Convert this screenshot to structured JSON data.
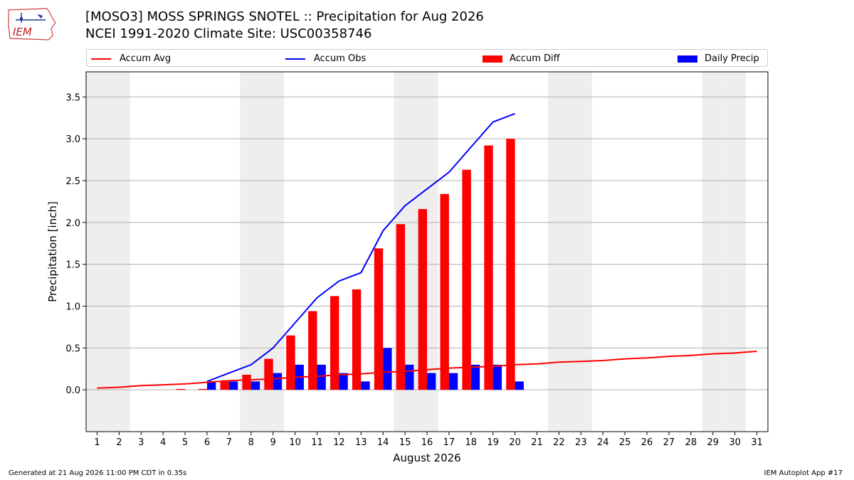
{
  "header": {
    "title_line1": "[MOSO3] MOSS SPRINGS SNOTEL :: Precipitation for Aug 2026",
    "title_line2": "NCEI 1991-2020 Climate Site: USC00358746",
    "logo_text": "IEM"
  },
  "footer": {
    "left": "Generated at 21 Aug 2026 11:00 PM CDT in 0.35s",
    "right": "IEM Autoplot App #17"
  },
  "colors": {
    "accum_avg": "#ff0000",
    "accum_obs": "#0000ff",
    "accum_diff": "#ff0000",
    "daily_precip": "#0000ff",
    "weekend_shade": "#eeeeee",
    "grid": "#b0b0b0"
  },
  "chart_data": {
    "type": "bar",
    "xlabel": "August 2026",
    "ylabel": "Precipitation [inch]",
    "xlim": [
      0.5,
      31.5
    ],
    "ylim": [
      -0.5,
      3.8
    ],
    "yticks": [
      0.0,
      0.5,
      1.0,
      1.5,
      2.0,
      2.5,
      3.0,
      3.5
    ],
    "ytick_labels": [
      "0.0",
      "0.5",
      "1.0",
      "1.5",
      "2.0",
      "2.5",
      "3.0",
      "3.5"
    ],
    "x_days": [
      1,
      2,
      3,
      4,
      5,
      6,
      7,
      8,
      9,
      10,
      11,
      12,
      13,
      14,
      15,
      16,
      17,
      18,
      19,
      20,
      21,
      22,
      23,
      24,
      25,
      26,
      27,
      28,
      29,
      30,
      31
    ],
    "grid": "horizontal",
    "legend_position": "top",
    "weekend_days": [
      1,
      2,
      8,
      9,
      15,
      16,
      22,
      23,
      29,
      30
    ],
    "series": [
      {
        "name": "Accum Avg",
        "kind": "line",
        "x": [
          1,
          2,
          3,
          4,
          5,
          6,
          7,
          8,
          9,
          10,
          11,
          12,
          13,
          14,
          15,
          16,
          17,
          18,
          19,
          20,
          21,
          22,
          23,
          24,
          25,
          26,
          27,
          28,
          29,
          30,
          31
        ],
        "values": [
          0.02,
          0.03,
          0.05,
          0.06,
          0.07,
          0.09,
          0.11,
          0.12,
          0.13,
          0.15,
          0.16,
          0.18,
          0.19,
          0.21,
          0.22,
          0.24,
          0.26,
          0.27,
          0.28,
          0.3,
          0.31,
          0.33,
          0.34,
          0.35,
          0.37,
          0.38,
          0.4,
          0.41,
          0.43,
          0.44,
          0.46
        ]
      },
      {
        "name": "Accum Obs",
        "kind": "line",
        "x": [
          6,
          7,
          8,
          9,
          10,
          11,
          12,
          13,
          14,
          15,
          16,
          17,
          18,
          19,
          20
        ],
        "values": [
          0.1,
          0.2,
          0.3,
          0.5,
          0.8,
          1.1,
          1.3,
          1.4,
          1.9,
          2.2,
          2.4,
          2.6,
          2.9,
          3.2,
          3.3
        ]
      },
      {
        "name": "Accum Diff",
        "kind": "bar",
        "x": [
          5,
          6,
          7,
          8,
          9,
          10,
          11,
          12,
          13,
          14,
          15,
          16,
          17,
          18,
          19,
          20
        ],
        "values": [
          0.01,
          0.01,
          0.1,
          0.18,
          0.37,
          0.65,
          0.94,
          1.12,
          1.2,
          1.69,
          1.98,
          2.16,
          2.34,
          2.63,
          2.92,
          3.0
        ]
      },
      {
        "name": "Daily Precip",
        "kind": "bar",
        "x": [
          6,
          7,
          8,
          9,
          10,
          11,
          12,
          13,
          14,
          15,
          16,
          17,
          18,
          19,
          20
        ],
        "values": [
          0.1,
          0.1,
          0.1,
          0.2,
          0.3,
          0.3,
          0.2,
          0.1,
          0.5,
          0.3,
          0.2,
          0.2,
          0.3,
          0.3,
          0.1
        ]
      }
    ]
  }
}
